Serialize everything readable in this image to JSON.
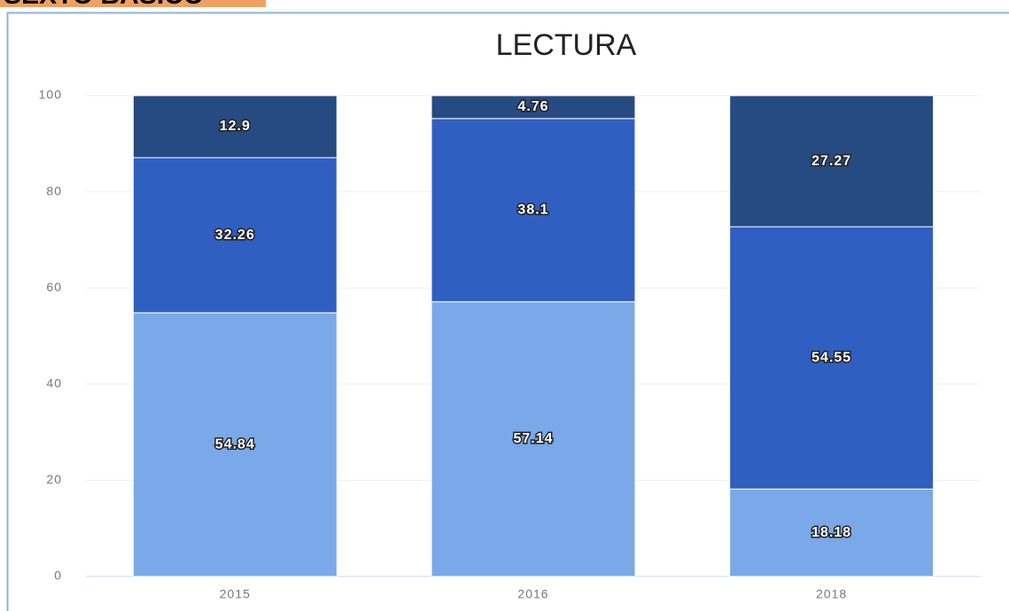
{
  "header": {
    "title": "SEXTO BÁSICO"
  },
  "chart_data": {
    "type": "bar",
    "stacked": true,
    "title": "LECTURA",
    "categories": [
      "2015",
      "2016",
      "2018"
    ],
    "series": [
      {
        "color": "#7aa8e8",
        "values": [
          54.84,
          57.14,
          18.18
        ]
      },
      {
        "color": "#2f5fc0",
        "values": [
          32.26,
          38.1,
          54.55
        ]
      },
      {
        "color": "#264a82",
        "values": [
          12.9,
          4.76,
          27.27
        ]
      }
    ],
    "ylim": [
      0,
      100
    ],
    "yticks": [
      0,
      20,
      40,
      60,
      80,
      100
    ],
    "grid": true
  }
}
